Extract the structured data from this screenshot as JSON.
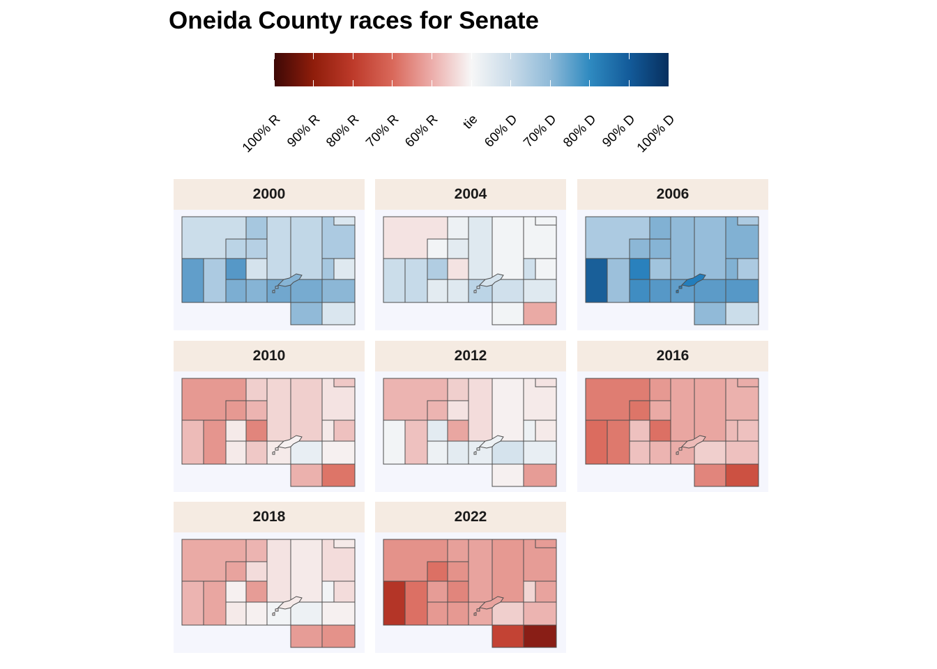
{
  "title": "Oneida County races for Senate",
  "legend": {
    "labels": [
      "100% R",
      "90% R",
      "80% R",
      "70% R",
      "60% R",
      "tie",
      "60% D",
      "70% D",
      "80% D",
      "90% D",
      "100% D"
    ]
  },
  "colors": {
    "strip_bg": "#f5ebe2",
    "panel_bg": "#f5f6fd",
    "border": "#4d4d4d"
  },
  "map_data": {
    "type": "choropleth",
    "value_scale": "two-party share, negative = R, positive = D",
    "panels": [
      {
        "year": "2000",
        "values": [
          0.18,
          0.32,
          0.26,
          0.24,
          0.14,
          0.2,
          0.22,
          0.3,
          0.12,
          0.32,
          0.1,
          0.58,
          0.3,
          0.62,
          0.48,
          0.44,
          0.52,
          0.5,
          0.42,
          0.12,
          0.4,
          0.44
        ]
      },
      {
        "year": "2004",
        "values": [
          -0.06,
          0.04,
          0.08,
          0.02,
          -0.06,
          0.1,
          0.02,
          0.02,
          0.02,
          0.16,
          0.02,
          0.18,
          0.2,
          0.28,
          0.08,
          0.1,
          0.24,
          0.16,
          0.1,
          -0.26,
          0.02,
          0.14
        ]
      },
      {
        "year": "2006",
        "values": [
          0.3,
          0.46,
          0.44,
          0.42,
          0.34,
          0.4,
          0.38,
          0.46,
          0.3,
          0.46,
          0.3,
          0.88,
          0.36,
          0.78,
          0.7,
          0.62,
          0.58,
          0.6,
          0.62,
          0.18,
          0.4,
          0.8
        ]
      },
      {
        "year": "2010",
        "values": [
          -0.36,
          -0.12,
          -0.2,
          -0.36,
          -0.46,
          -0.1,
          -0.12,
          -0.06,
          -0.14,
          -0.04,
          -0.16,
          -0.18,
          -0.38,
          -0.04,
          -0.04,
          -0.14,
          -0.04,
          0.06,
          -0.02,
          -0.54,
          -0.22,
          -0.02
        ]
      },
      {
        "year": "2012",
        "values": [
          -0.2,
          -0.12,
          -0.06,
          -0.2,
          -0.28,
          -0.08,
          -0.02,
          -0.04,
          -0.06,
          0.04,
          -0.04,
          0.02,
          -0.16,
          0.08,
          0.04,
          0.08,
          0.06,
          0.14,
          0.06,
          -0.34,
          -0.02,
          0.04
        ]
      },
      {
        "year": "2016",
        "values": [
          -0.5,
          -0.36,
          -0.26,
          -0.54,
          -0.56,
          -0.28,
          -0.28,
          -0.22,
          -0.24,
          -0.18,
          -0.16,
          -0.58,
          -0.52,
          -0.16,
          -0.16,
          -0.2,
          -0.24,
          -0.12,
          -0.16,
          -0.7,
          -0.46,
          -0.18
        ]
      },
      {
        "year": "2018",
        "values": [
          -0.26,
          -0.2,
          -0.08,
          -0.3,
          -0.34,
          -0.06,
          -0.04,
          -0.08,
          -0.04,
          0.02,
          -0.08,
          -0.2,
          -0.28,
          -0.02,
          -0.04,
          -0.02,
          0.02,
          0.04,
          -0.02,
          -0.4,
          -0.34,
          -0.04
        ]
      },
      {
        "year": "2022",
        "values": [
          -0.4,
          -0.32,
          -0.4,
          -0.56,
          -0.46,
          -0.3,
          -0.36,
          -0.34,
          -0.34,
          -0.1,
          -0.3,
          -0.82,
          -0.56,
          -0.34,
          -0.36,
          -0.36,
          -0.26,
          -0.12,
          -0.2,
          -0.92,
          -0.76,
          -0.3
        ]
      }
    ]
  }
}
